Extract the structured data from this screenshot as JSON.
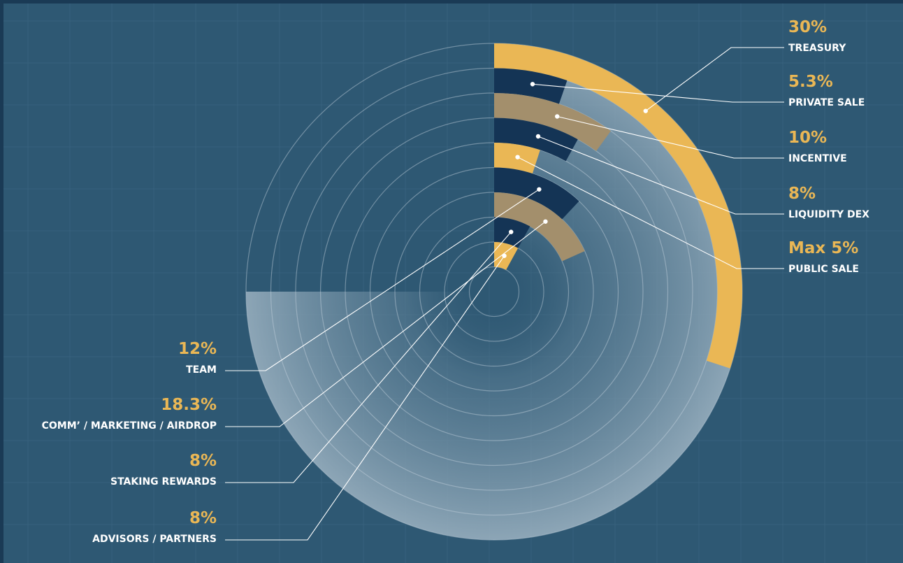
{
  "colors": {
    "background": "#2e5873",
    "gold": "#eab755",
    "navy": "#143455",
    "tan": "#a38f6c",
    "text": "#ffffff"
  },
  "chart_data": {
    "type": "radial-bar",
    "title": "",
    "series": [
      {
        "name": "TREASURY",
        "value": 30,
        "label": "30%",
        "color": "gold"
      },
      {
        "name": "PRIVATE SALE",
        "value": 5.3,
        "label": "5.3%",
        "color": "navy"
      },
      {
        "name": "INCENTIVE",
        "value": 10,
        "label": "10%",
        "color": "tan"
      },
      {
        "name": "LIQUIDITY DEX",
        "value": 8,
        "label": "8%",
        "color": "navy"
      },
      {
        "name": "PUBLIC SALE",
        "value": 5,
        "label": "Max 5%",
        "color": "gold"
      },
      {
        "name": "TEAM",
        "value": 12,
        "label": "12%",
        "color": "navy"
      },
      {
        "name": "COMM’ / MARKETING / AIRDROP",
        "value": 18.3,
        "label": "18.3%",
        "color": "tan"
      },
      {
        "name": "STAKING REWARDS",
        "value": 8,
        "label": "8%",
        "color": "navy"
      },
      {
        "name": "ADVISORS / PARTNERS",
        "value": 8,
        "label": "8%",
        "color": "gold"
      }
    ]
  }
}
